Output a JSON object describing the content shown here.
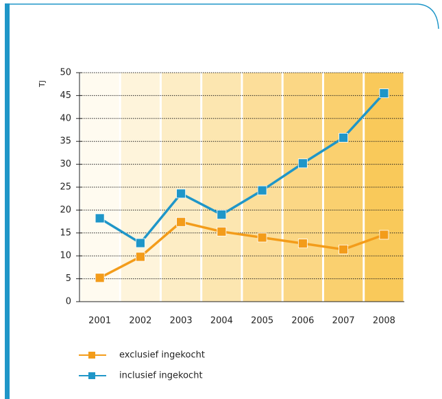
{
  "chart_data": {
    "type": "line",
    "y_label": "TJ",
    "categories": [
      "2001",
      "2002",
      "2003",
      "2004",
      "2005",
      "2006",
      "2007",
      "2008"
    ],
    "series": [
      {
        "name": "exclusief ingekocht",
        "color": "#f39c1a",
        "values": [
          5.2,
          9.8,
          17.4,
          15.3,
          14.0,
          12.7,
          11.4,
          14.6
        ]
      },
      {
        "name": "inclusief ingekocht",
        "color": "#1f96c8",
        "values": [
          18.2,
          12.8,
          23.6,
          19.0,
          24.3,
          30.2,
          35.8,
          45.5
        ]
      }
    ],
    "ylim": [
      0,
      50
    ],
    "yticks": [
      0,
      5,
      10,
      15,
      20,
      25,
      30,
      35,
      40,
      45,
      50
    ],
    "grid": true
  }
}
